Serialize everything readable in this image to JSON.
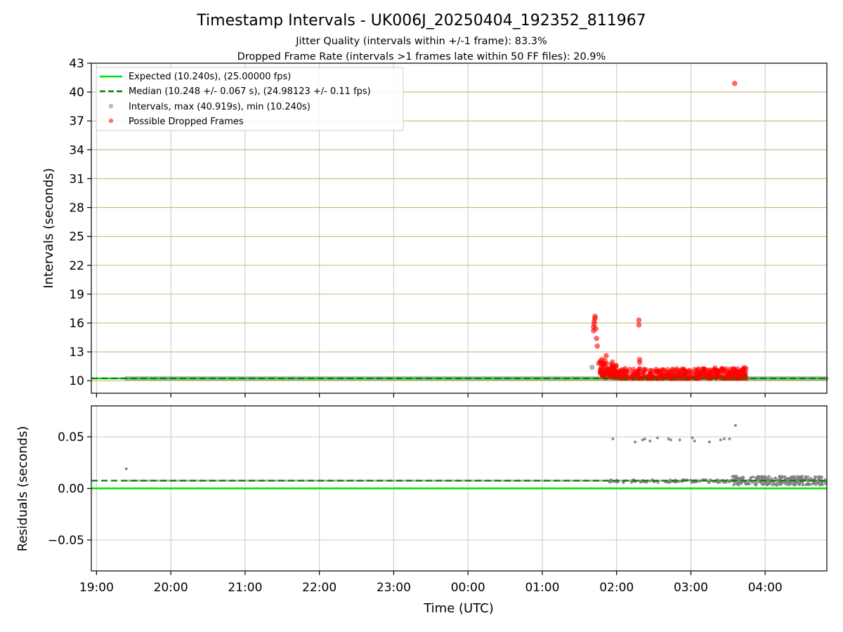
{
  "chart_data": {
    "type": "scatter",
    "title": "Timestamp Intervals - UK006J_20250404_192352_811967",
    "subtitle_lines": [
      "Jitter Quality (intervals within +/-1 frame): 83.3%",
      "Dropped Frame Rate (intervals >1 frames late within 50 FF files): 20.9%"
    ],
    "xlabel": "Time (UTC)",
    "x_ticks": [
      "19:00",
      "20:00",
      "21:00",
      "22:00",
      "23:00",
      "00:00",
      "01:00",
      "02:00",
      "03:00",
      "04:00"
    ],
    "x_range_hours": [
      -0.07,
      9.83
    ],
    "grid": true,
    "colors": {
      "expected": "#00e000",
      "median": "#007f00",
      "intervals": "#7f7f7f",
      "dropped": "#ff0000",
      "h_grid_top": "#c8b878",
      "grid": "#c8c8c8"
    },
    "panels": [
      {
        "name": "intervals",
        "ylabel": "Intervals (seconds)",
        "ylim": [
          8.7,
          43
        ],
        "y_ticks": [
          10,
          13,
          16,
          19,
          22,
          25,
          28,
          31,
          34,
          37,
          40,
          43
        ],
        "legend": {
          "position": "upper-left",
          "entries": [
            {
              "label": "Expected (10.240s), (25.00000 fps)",
              "style": "solid-line",
              "color": "#00e000"
            },
            {
              "label": "Median (10.248 +/- 0.067 s), (24.98123 +/- 0.11 fps)",
              "style": "dashed-line",
              "color": "#007f00"
            },
            {
              "label": "Intervals, max (40.919s), min (10.240s)",
              "style": "dot",
              "color": "#7f7f7f"
            },
            {
              "label": "Possible Dropped Frames",
              "style": "dot",
              "color": "#ff0000"
            }
          ]
        },
        "lines": [
          {
            "name": "Expected",
            "y": 10.24
          },
          {
            "name": "Median",
            "y": 10.248
          }
        ],
        "interval_band": {
          "x_start": 0.4,
          "x_end": 9.83,
          "y": 10.24
        },
        "interval_points": [
          {
            "x": 6.67,
            "y": 11.4
          }
        ],
        "dropped_points": [
          {
            "x": 6.69,
            "y": 15.2
          },
          {
            "x": 6.69,
            "y": 15.6
          },
          {
            "x": 6.7,
            "y": 15.9
          },
          {
            "x": 6.7,
            "y": 16.2
          },
          {
            "x": 6.71,
            "y": 16.5
          },
          {
            "x": 6.71,
            "y": 16.7
          },
          {
            "x": 6.72,
            "y": 15.4
          },
          {
            "x": 6.73,
            "y": 14.4
          },
          {
            "x": 6.74,
            "y": 13.6
          },
          {
            "x": 6.76,
            "y": 11.8
          },
          {
            "x": 6.78,
            "y": 12.0
          },
          {
            "x": 6.8,
            "y": 12.2
          },
          {
            "x": 6.82,
            "y": 11.7
          },
          {
            "x": 6.84,
            "y": 12.1
          },
          {
            "x": 6.86,
            "y": 12.6
          },
          {
            "x": 6.88,
            "y": 11.2
          },
          {
            "x": 6.9,
            "y": 10.9
          },
          {
            "x": 7.3,
            "y": 16.3
          },
          {
            "x": 7.3,
            "y": 15.8
          },
          {
            "x": 7.31,
            "y": 12.2
          },
          {
            "x": 7.31,
            "y": 11.9
          },
          {
            "x": 8.59,
            "y": 40.9
          }
        ],
        "dropped_cluster": {
          "x_start": 6.78,
          "x_end": 8.75,
          "y_min": 10.24,
          "y_max": 11.3
        }
      },
      {
        "name": "residuals",
        "ylabel": "Residuals (seconds)",
        "ylim": [
          -0.08,
          0.08
        ],
        "y_ticks": [
          0.05,
          0.0,
          -0.05
        ],
        "y_tick_labels": [
          "0.05",
          "0.00",
          "−0.05"
        ],
        "lines": [
          {
            "name": "Expected",
            "y": 0.0
          },
          {
            "name": "Median",
            "y": 0.0075
          }
        ],
        "residual_band": {
          "x_start": 0.4,
          "x_end": 9.83,
          "y": 0.0075
        },
        "residual_points": [
          {
            "x": 0.4,
            "y": 0.019
          },
          {
            "x": 6.95,
            "y": 0.048
          },
          {
            "x": 7.25,
            "y": 0.045
          },
          {
            "x": 7.35,
            "y": 0.047
          },
          {
            "x": 7.38,
            "y": 0.048
          },
          {
            "x": 7.45,
            "y": 0.046
          },
          {
            "x": 7.55,
            "y": 0.049
          },
          {
            "x": 7.7,
            "y": 0.048
          },
          {
            "x": 7.73,
            "y": 0.047
          },
          {
            "x": 7.85,
            "y": 0.047
          },
          {
            "x": 8.02,
            "y": 0.049
          },
          {
            "x": 8.05,
            "y": 0.046
          },
          {
            "x": 8.25,
            "y": 0.045
          },
          {
            "x": 8.4,
            "y": 0.047
          },
          {
            "x": 8.45,
            "y": 0.048
          },
          {
            "x": 8.52,
            "y": 0.048
          },
          {
            "x": 8.6,
            "y": 0.061
          }
        ],
        "residual_cluster": {
          "x_start": 6.9,
          "x_end": 9.83,
          "y_min": 0.003,
          "y_max": 0.012
        }
      }
    ]
  }
}
